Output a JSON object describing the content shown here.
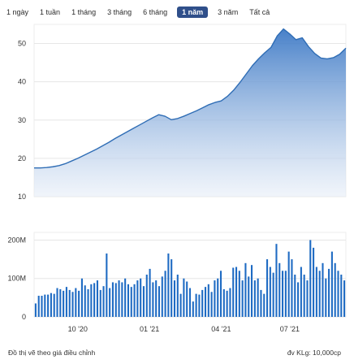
{
  "range_selector": {
    "items": [
      {
        "label": "1 ngày"
      },
      {
        "label": "1 tuần"
      },
      {
        "label": "1 tháng"
      },
      {
        "label": "3 tháng"
      },
      {
        "label": "6 tháng"
      },
      {
        "label": "1 năm"
      },
      {
        "label": "3 năm"
      },
      {
        "label": "Tất cả"
      }
    ],
    "active_index": 5
  },
  "footer": {
    "note": "Đồ thị vẽ theo giá điều chỉnh",
    "unit_note": "đv KLg: 10,000cp"
  },
  "colors": {
    "line": "#2f6db5",
    "area_top": "#3e7ac6",
    "area_bottom": "#e7eef8",
    "volume": "#1f6bc3",
    "grid": "#e6e6e6",
    "axis": "#333333"
  },
  "chart_data": [
    {
      "type": "area",
      "grid": true,
      "ylim": [
        10,
        55
      ],
      "yticks": [
        10,
        20,
        30,
        40,
        50
      ],
      "ytick_labels": [
        "10",
        "20",
        "30",
        "40",
        "50"
      ],
      "x": [
        0,
        2,
        4,
        6,
        8,
        10,
        12,
        14,
        16,
        18,
        20,
        22,
        24,
        26,
        28,
        30,
        32,
        34,
        36,
        38,
        40,
        42,
        44,
        46,
        48,
        50,
        52,
        54,
        56,
        58,
        60,
        62,
        64,
        66,
        68,
        70,
        72,
        74,
        76,
        78,
        80,
        82,
        84,
        86,
        88,
        90,
        92,
        94,
        96,
        98,
        100
      ],
      "y": [
        17.5,
        17.5,
        17.6,
        17.8,
        18.1,
        18.6,
        19.3,
        20.0,
        20.8,
        21.6,
        22.4,
        23.3,
        24.2,
        25.2,
        26.1,
        27.0,
        27.9,
        28.8,
        29.7,
        30.6,
        31.4,
        31.0,
        30.1,
        30.4,
        31.0,
        31.7,
        32.4,
        33.2,
        34.0,
        34.6,
        35.0,
        36.2,
        37.8,
        39.8,
        42.0,
        44.2,
        46.0,
        47.6,
        49.0,
        52.0,
        53.8,
        52.5,
        51.0,
        51.5,
        49.2,
        47.4,
        46.2,
        46.0,
        46.3,
        47.2,
        48.8
      ],
      "x_tick_positions": [
        14,
        37,
        60,
        82
      ],
      "x_tick_labels": [
        "10 '20",
        "01 '21",
        "04 '21",
        "07 '21"
      ]
    },
    {
      "type": "bar",
      "grid": true,
      "ylim": [
        0,
        220
      ],
      "yticks": [
        0,
        100,
        200
      ],
      "ytick_labels": [
        "0",
        "100M",
        "200M"
      ],
      "values": [
        35,
        55,
        55,
        58,
        58,
        62,
        60,
        75,
        72,
        68,
        78,
        70,
        65,
        75,
        68,
        100,
        82,
        72,
        85,
        88,
        95,
        70,
        80,
        165,
        75,
        90,
        88,
        95,
        90,
        100,
        85,
        78,
        85,
        95,
        100,
        80,
        110,
        125,
        90,
        95,
        80,
        105,
        120,
        165,
        150,
        95,
        110,
        60,
        100,
        92,
        75,
        40,
        60,
        58,
        70,
        78,
        85,
        65,
        95,
        100,
        120,
        72,
        68,
        75,
        128,
        130,
        120,
        95,
        140,
        105,
        135,
        95,
        100,
        70,
        60,
        150,
        130,
        115,
        190,
        140,
        120,
        120,
        170,
        150,
        110,
        90,
        130,
        110,
        95,
        200,
        180,
        130,
        120,
        140,
        100,
        125,
        170,
        140,
        120,
        110,
        95
      ],
      "x_tick_positions": [
        14,
        37,
        60,
        82
      ],
      "x_tick_labels": [
        "10 '20",
        "01 '21",
        "04 '21",
        "07 '21"
      ]
    }
  ]
}
